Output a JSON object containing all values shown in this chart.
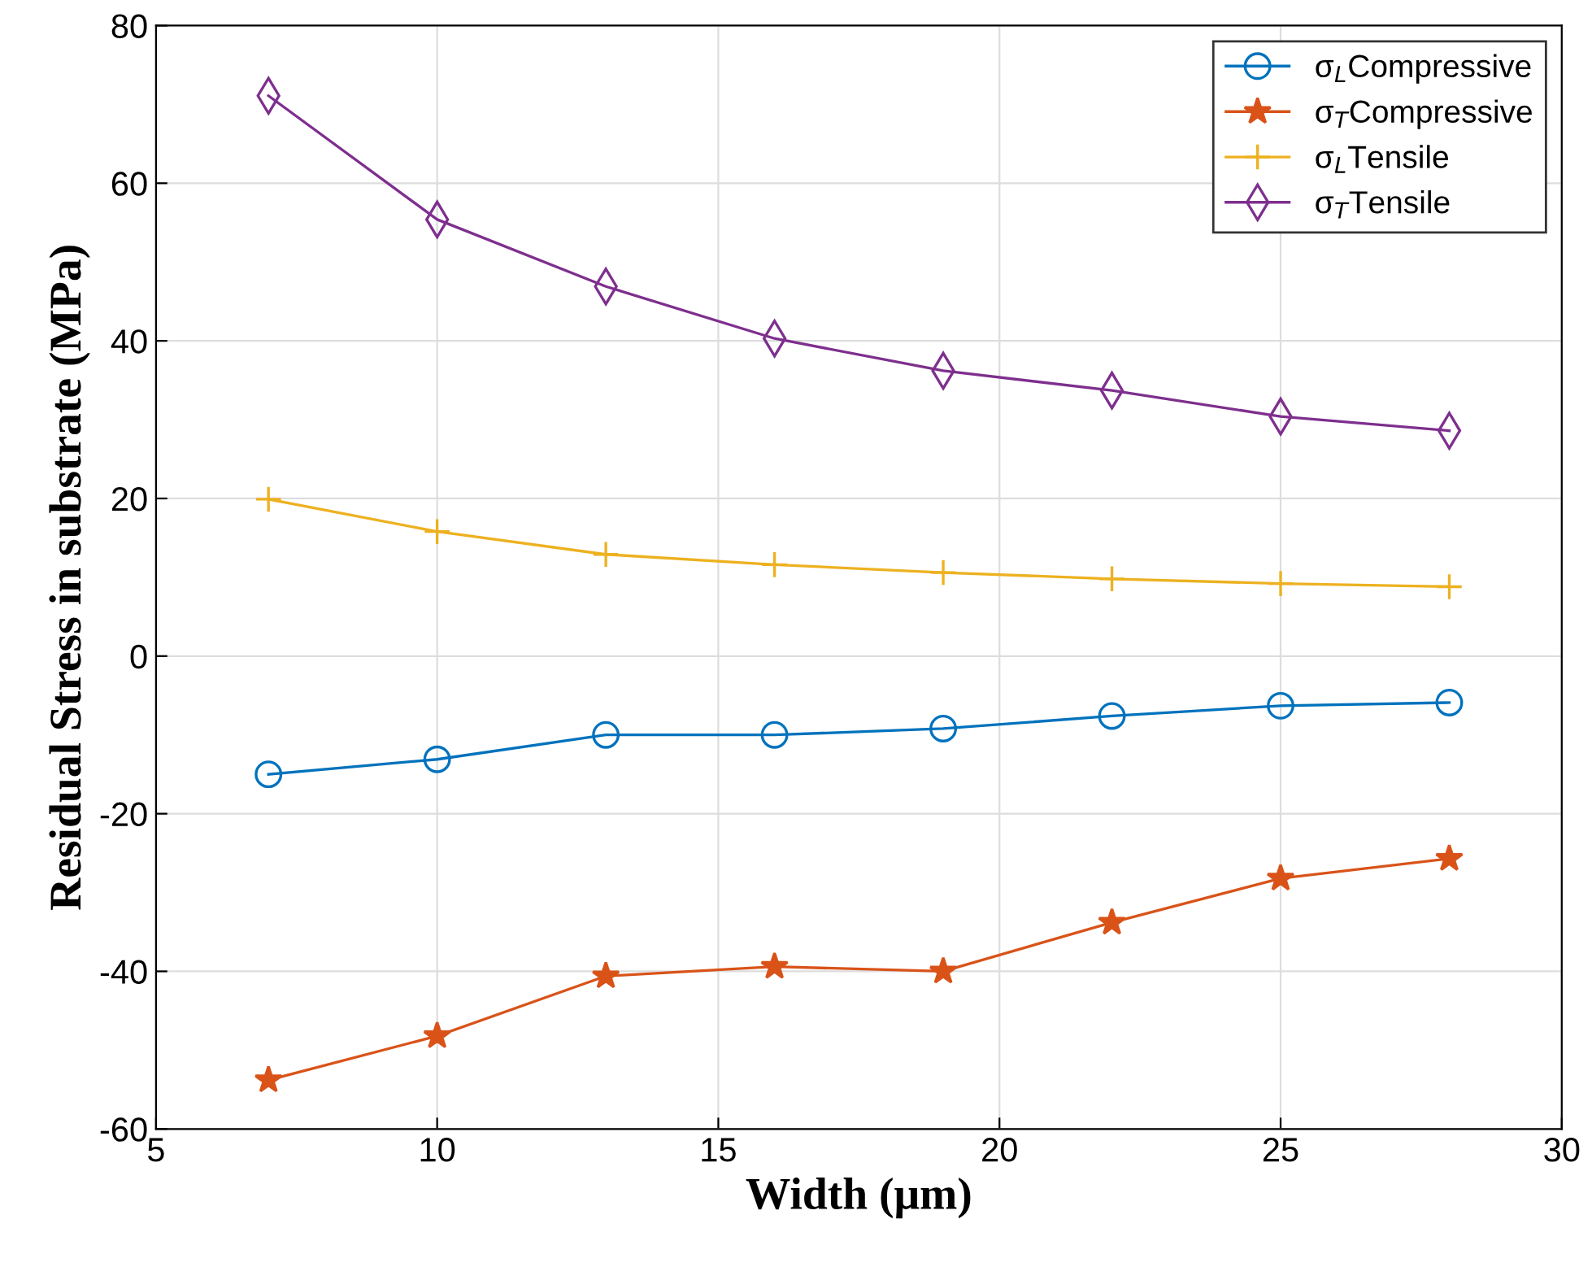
{
  "chart_data": {
    "type": "line",
    "xlabel": "Width (μm)",
    "ylabel": "Residual Stress in substrate (MPa)",
    "x": [
      7,
      10,
      13,
      16,
      19,
      22,
      25,
      28
    ],
    "series": [
      {
        "name": "σ$_{L}$Compressive",
        "color": "#0072bd",
        "marker": "circle",
        "values": [
          -15.0,
          -13.1,
          -10.0,
          -10.0,
          -9.2,
          -7.6,
          -6.3,
          -5.9
        ]
      },
      {
        "name": "σ$_{T}$Compressive",
        "color": "#d95319",
        "marker": "star",
        "values": [
          -53.8,
          -48.2,
          -40.6,
          -39.4,
          -40.0,
          -33.8,
          -28.2,
          -25.7
        ]
      },
      {
        "name": "σ$_{L}$Tensile",
        "color": "#edb120",
        "marker": "cross",
        "values": [
          19.9,
          15.8,
          12.9,
          11.6,
          10.6,
          9.8,
          9.2,
          8.8
        ]
      },
      {
        "name": "σ$_{T}$Tensile",
        "color": "#7e2f8e",
        "marker": "diamond",
        "values": [
          71.1,
          55.4,
          46.9,
          40.3,
          36.2,
          33.7,
          30.4,
          28.6
        ]
      }
    ],
    "xlim": [
      5,
      30
    ],
    "xticks": [
      5,
      10,
      15,
      20,
      25,
      30
    ],
    "ylim": [
      -60,
      80
    ],
    "yticks": [
      -60,
      -40,
      -20,
      0,
      20,
      40,
      60,
      80
    ],
    "grid": true,
    "legend": "top right"
  }
}
